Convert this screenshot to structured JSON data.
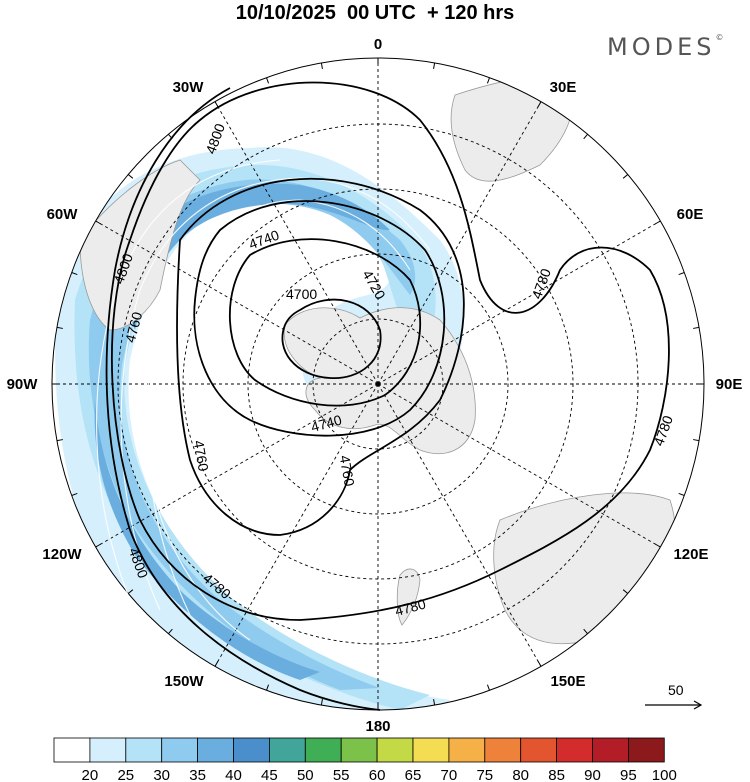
{
  "title": "10/10/2025  00 UTC  + 120 hrs",
  "brand": "MODES",
  "brand_mark": "©",
  "map": {
    "projection": "south-polar-stereographic",
    "center": "south-pole",
    "longitude_labels": [
      "0",
      "30E",
      "60E",
      "90E",
      "120E",
      "150E",
      "180",
      "150W",
      "120W",
      "90W",
      "60W",
      "30W"
    ],
    "contour_values": [
      "4700",
      "4720",
      "4740",
      "4740",
      "4760",
      "4760",
      "4760",
      "4780",
      "4780",
      "4780",
      "4780",
      "4800",
      "4800",
      "4800"
    ]
  },
  "reference_vector": {
    "label": "50"
  },
  "colorbar": {
    "tick_labels": [
      "20",
      "25",
      "30",
      "35",
      "40",
      "45",
      "50",
      "55",
      "60",
      "65",
      "70",
      "75",
      "80",
      "85",
      "90",
      "95",
      "100"
    ],
    "colors": [
      "#ffffff",
      "#d5f0fc",
      "#b4e2f7",
      "#8fcbee",
      "#6aaedf",
      "#4a8fcb",
      "#41a699",
      "#3fae54",
      "#7cc24a",
      "#c3d946",
      "#f5dd53",
      "#f5b048",
      "#ee823b",
      "#e3552f",
      "#d22c2c",
      "#b31d27",
      "#8c1a1c"
    ]
  }
}
